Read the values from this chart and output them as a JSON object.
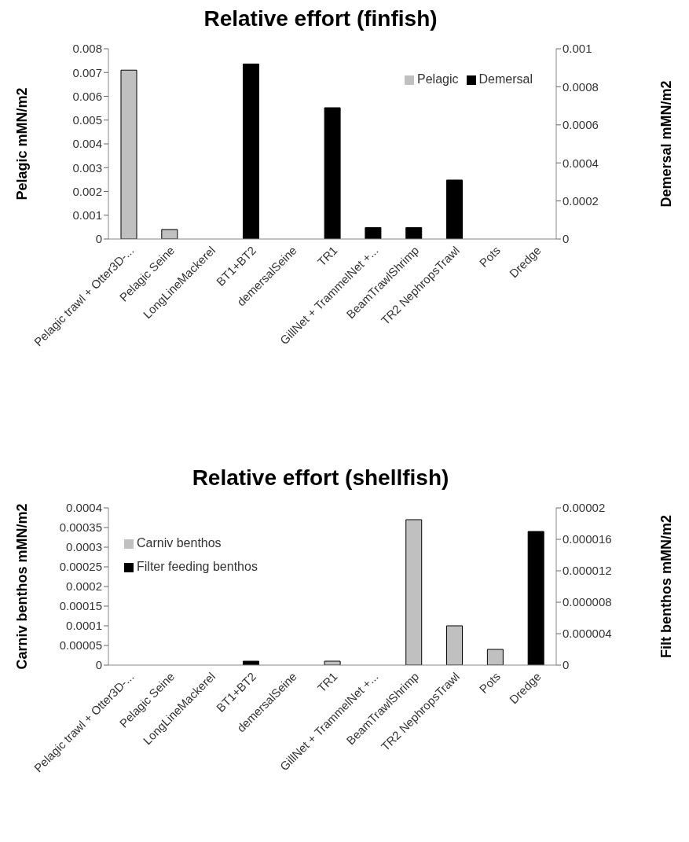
{
  "chart_data": [
    {
      "type": "bar",
      "title": "Relative effort (finfish)",
      "ylabel": "Pelagic mMN/m2",
      "y2label": "Demersal mMN/m2",
      "categories": [
        "Pelagic trawl + Otter3D-...",
        "Pelagic Seine",
        "LongLineMackerel",
        "BT1+BT2",
        "demersalSeine",
        "TR1",
        "GillNet + TrammelNet +...",
        "BeamTrawlShrimp",
        "TR2 NephropsTrawl",
        "Pots",
        "Dredge"
      ],
      "series": [
        {
          "name": "Pelagic",
          "color": "#c0c0c0",
          "values": [
            0.0071,
            0.0004,
            null,
            null,
            null,
            null,
            null,
            null,
            null,
            null,
            null
          ]
        },
        {
          "name": "Demersal",
          "color": "#000000",
          "axis": "y2",
          "values": [
            null,
            null,
            0,
            0.00092,
            0,
            0.00069,
            6e-05,
            6e-05,
            0.00031,
            0,
            0
          ]
        }
      ],
      "ylim": [
        0,
        0.008
      ],
      "yticks": [
        0,
        0.001,
        0.002,
        0.003,
        0.004,
        0.005,
        0.006,
        0.007,
        0.008
      ],
      "y2lim": [
        0,
        0.001
      ],
      "y2ticks": [
        0,
        0.0002,
        0.0004,
        0.0006,
        0.0008,
        0.001
      ],
      "legend": "top right"
    },
    {
      "type": "bar",
      "title": "Relative effort (shellfish)",
      "ylabel": "Carniv benthos  mMN/m2",
      "y2label": "Filt benthos mMN/m2",
      "categories": [
        "Pelagic trawl + Otter3D-...",
        "Pelagic Seine",
        "LongLineMackerel",
        "BT1+BT2",
        "demersalSeine",
        "TR1",
        "GillNet + TrammelNet +...",
        "BeamTrawlShrimp",
        "TR2 NephropsTrawl",
        "Pots",
        "Dredge"
      ],
      "series": [
        {
          "name": "Carniv benthos",
          "color": "#c0c0c0",
          "values": [
            null,
            null,
            null,
            null,
            null,
            1e-05,
            null,
            0.00037,
            0.0001,
            4e-05,
            null
          ]
        },
        {
          "name": "Filter feeding benthos",
          "color": "#000000",
          "axis": "y2",
          "values": [
            0,
            null,
            0,
            5e-07,
            0,
            null,
            0,
            null,
            null,
            null,
            1.7e-05
          ]
        }
      ],
      "ylim": [
        0,
        0.0004
      ],
      "yticks": [
        0,
        {
          "value": 5e-05,
          "label": "0.00005"
        },
        0.0001,
        0.00015,
        0.0002,
        0.00025,
        0.0003,
        0.00035,
        0.0004
      ],
      "y2lim": [
        0,
        2e-05
      ],
      "y2ticks": [
        0,
        {
          "value": 4e-06,
          "label": "0.000004"
        },
        {
          "value": 8e-06,
          "label": "0.000008"
        },
        {
          "value": 1.2e-05,
          "label": "0.000012"
        },
        {
          "value": 1.6e-05,
          "label": "0.000016"
        },
        {
          "value": 2e-05,
          "label": "0.00002"
        }
      ],
      "legend": "top left"
    }
  ]
}
